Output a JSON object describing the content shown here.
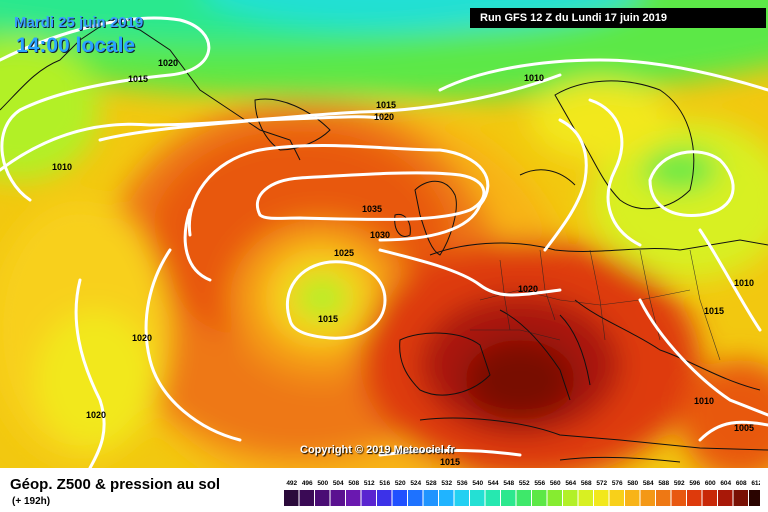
{
  "map": {
    "date_line": "Mardi 25 juin 2019",
    "time_line": "14:00 locale",
    "run_info": "Run GFS 12 Z du Lundi 17 juin 2019",
    "copyright": "Copyright © 2019 Meteociel.fr",
    "isobar_labels": [
      "1020",
      "1015",
      "1010",
      "1015",
      "1020",
      "1010",
      "1035",
      "1030",
      "1025",
      "1015",
      "1020",
      "1020",
      "1020",
      "1010",
      "1015",
      "1010",
      "1005",
      "1015"
    ]
  },
  "legend": {
    "title": "Géop. Z500 & pression au sol",
    "lead_time": "(+ 192h)",
    "ticks": [
      "492",
      "496",
      "500",
      "504",
      "508",
      "512",
      "516",
      "520",
      "524",
      "528",
      "532",
      "536",
      "540",
      "544",
      "548",
      "552",
      "556",
      "560",
      "564",
      "568",
      "572",
      "576",
      "580",
      "584",
      "588",
      "592",
      "596",
      "600",
      "604",
      "608",
      "612"
    ],
    "colors": [
      "#2a0a3a",
      "#3a0a55",
      "#4a0c74",
      "#5a1090",
      "#6a18b0",
      "#5a24d0",
      "#3c32e8",
      "#2050ff",
      "#1e72ff",
      "#1f94ff",
      "#20b4ff",
      "#22d0f2",
      "#24e0d4",
      "#26e8b0",
      "#2ce88e",
      "#3ee86a",
      "#5ce846",
      "#86ec30",
      "#b2f028",
      "#d8f022",
      "#f2e81c",
      "#f8d01a",
      "#f8b418",
      "#f49816",
      "#ee7814",
      "#e85810",
      "#de3a0c",
      "#c82808",
      "#a81808",
      "#781004",
      "#2a0400"
    ]
  }
}
